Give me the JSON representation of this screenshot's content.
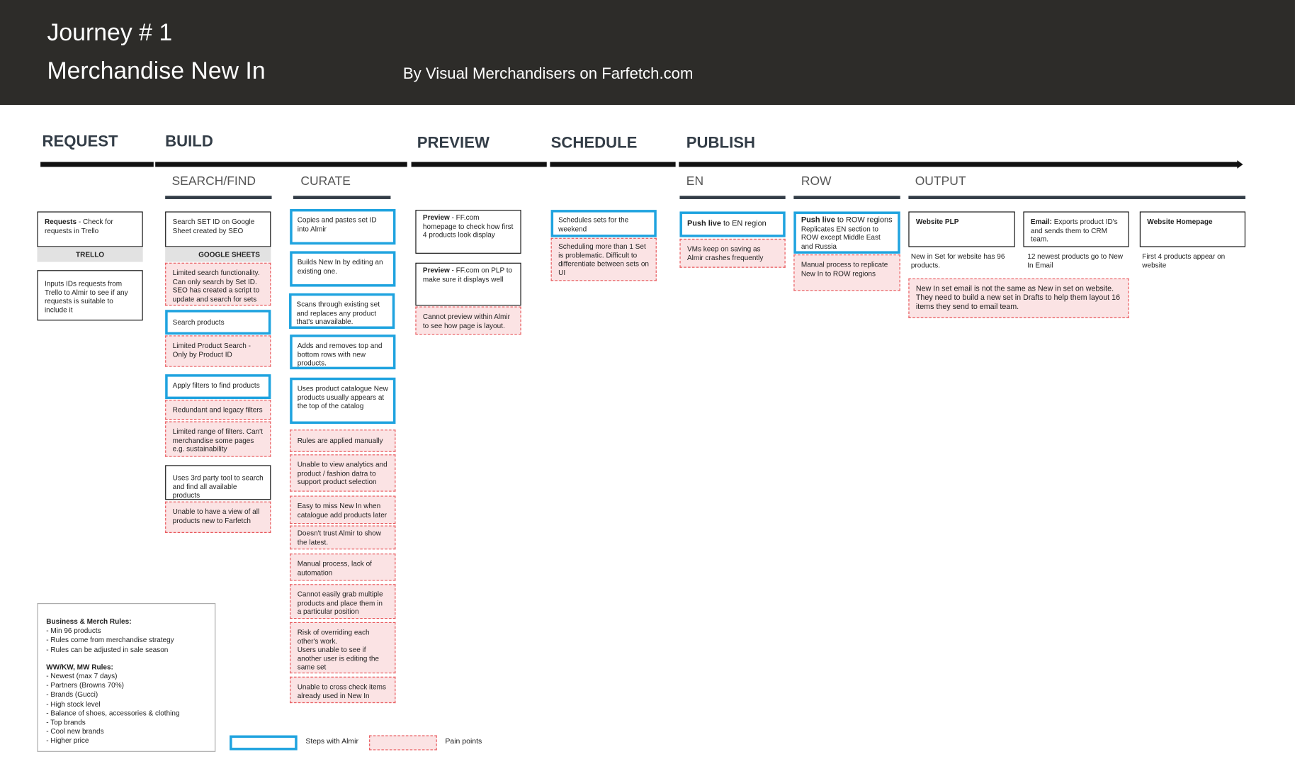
{
  "header": {
    "journey": "Journey # 1",
    "title": "Merchandise New In",
    "byline": "By Visual Merchandisers on Farfetch.com"
  },
  "phases": [
    "REQUEST",
    "BUILD",
    "PREVIEW",
    "SCHEDULE",
    "PUBLISH"
  ],
  "subphases": [
    "SEARCH/FIND",
    "CURATE",
    "EN",
    "ROW",
    "OUTPUT"
  ],
  "request": {
    "step1": {
      "bold": "Requests",
      "text": " - Check for requests in Trello"
    },
    "tool": "TRELLO",
    "step2": "Inputs IDs requests from Trello to Almir to see if any requests is suitable to include it"
  },
  "search": {
    "step1": "Search SET ID on Google Sheet created by SEO",
    "tool": "GOOGLE SHEETS",
    "pain1": "Limited search functionality. Can only search by Set ID. SEO has created a script to update and search for sets",
    "step2": "Search products",
    "pain2": "Limited Product Search - Only by Product ID",
    "step3": "Apply filters to find products",
    "pain3": "Redundant and legacy  filters",
    "pain4": "Limited range of filters. Can't merchandise some pages e.g. sustainability",
    "step4": "Uses 3rd party tool to search and find all available products",
    "pain5": "Unable to have a view of all products new to Farfetch"
  },
  "curate": {
    "steps": [
      "Copies and pastes set ID into Almir",
      "Builds New In by editing an existing one.",
      "Scans through existing set and replaces any product that's unavailable.",
      "Adds and removes top and bottom rows with new products.",
      "Uses product  catalogue New products usually appears at the top of the catalog"
    ],
    "pains": [
      "Rules are applied manually",
      "Unable to view analytics and product / fashion datra to support product selection",
      "Easy to miss New In when catalogue add products later",
      "Doesn't trust Almir to show the latest.",
      "Manual process, lack of automation",
      "Cannot easily grab multiple products and place them in a particular position",
      "Risk of overriding each other's work.\nUsers unable to see if another user is editing the same set",
      "Unable to cross check items already used in New In"
    ]
  },
  "preview": {
    "step1": {
      "bold": "Preview",
      "text": " - FF.com homepage to check how first 4 products look display"
    },
    "step2": {
      "bold": "Preview",
      "text": " - FF.com on PLP to make sure it displays well"
    },
    "pain": "Cannot preview within Almir to see how page is layout."
  },
  "schedule": {
    "step": "Schedules sets for the weekend",
    "pain": "Scheduling more than 1 Set is problematic. Difficult to differentiate between sets on UI"
  },
  "en": {
    "step": {
      "bold": "Push live",
      "text": " to EN region"
    },
    "pain": "VMs keep on saving as Almir crashes frequently"
  },
  "row": {
    "step": {
      "bold": "Push live",
      "text": " to ROW regions",
      "detail": "Replicates EN section to ROW except Middle East and Russia"
    },
    "pain": "Manual process to replicate New In to ROW regions"
  },
  "output": {
    "plp": {
      "title": "Website PLP",
      "note": "New in Set for website has 96 products."
    },
    "email": {
      "bold": "Email:",
      "text": " Exports product ID's and sends them to CRM team.",
      "note": "12 newest products go to New In Email"
    },
    "homepage": {
      "title": "Website Homepage",
      "note": "First 4 products appear on website"
    },
    "pain": "New In set email is not the same as New in set on website. They need to build a new set in Drafts to help them layout 16 items they send to email team."
  },
  "rules": {
    "business_title": "Business & Merch Rules:",
    "business": [
      "- Min 96 products",
      "- Rules come from merchandise strategy",
      "- Rules can be adjusted in sale season"
    ],
    "ww_title": "WW/KW, MW Rules:",
    "ww": [
      "- Newest (max 7 days)",
      "- Partners (Browns 70%)",
      "- Brands (Gucci)",
      "- High stock level",
      "- Balance of shoes, accessories & clothing",
      "- Top brands",
      "- Cool new brands",
      "- Higher price"
    ]
  },
  "legend": {
    "almir": "Steps with Almir",
    "pain": "Pain points"
  },
  "colors": {
    "header": "#2d2c29",
    "almir_border": "#1fa3df",
    "pain_fill": "#fbe3e4",
    "pain_border": "#e8575b"
  }
}
